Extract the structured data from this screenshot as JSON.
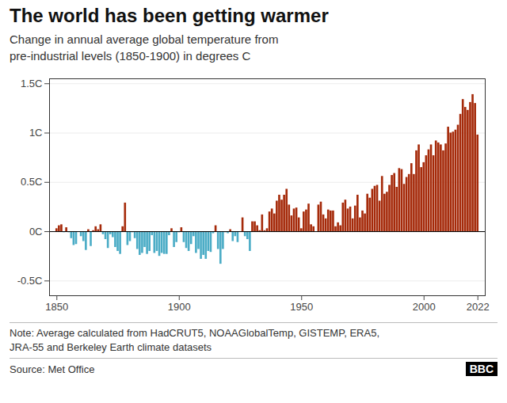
{
  "chart_data": {
    "type": "bar",
    "title": "The world has been getting warmer",
    "subtitle": "Change in annual average global temperature from\npre-industrial levels (1850-1900) in degrees C",
    "note": "Note: Average calculated from HadCRUT5, NOAAGlobalTemp, GISTEMP, ERA5,\nJRA-55 and Berkeley Earth climate datasets",
    "source": "Source: Met Office",
    "annotations": [
      "BBC"
    ],
    "x": [
      1850,
      1851,
      1852,
      1853,
      1854,
      1855,
      1856,
      1857,
      1858,
      1859,
      1860,
      1861,
      1862,
      1863,
      1864,
      1865,
      1866,
      1867,
      1868,
      1869,
      1870,
      1871,
      1872,
      1873,
      1874,
      1875,
      1876,
      1877,
      1878,
      1879,
      1880,
      1881,
      1882,
      1883,
      1884,
      1885,
      1886,
      1887,
      1888,
      1889,
      1890,
      1891,
      1892,
      1893,
      1894,
      1895,
      1896,
      1897,
      1898,
      1899,
      1900,
      1901,
      1902,
      1903,
      1904,
      1905,
      1906,
      1907,
      1908,
      1909,
      1910,
      1911,
      1912,
      1913,
      1914,
      1915,
      1916,
      1917,
      1918,
      1919,
      1920,
      1921,
      1922,
      1923,
      1924,
      1925,
      1926,
      1927,
      1928,
      1929,
      1930,
      1931,
      1932,
      1933,
      1934,
      1935,
      1936,
      1937,
      1938,
      1939,
      1940,
      1941,
      1942,
      1943,
      1944,
      1945,
      1946,
      1947,
      1948,
      1949,
      1950,
      1951,
      1952,
      1953,
      1954,
      1955,
      1956,
      1957,
      1958,
      1959,
      1960,
      1961,
      1962,
      1963,
      1964,
      1965,
      1966,
      1967,
      1968,
      1969,
      1970,
      1971,
      1972,
      1973,
      1974,
      1975,
      1976,
      1977,
      1978,
      1979,
      1980,
      1981,
      1982,
      1983,
      1984,
      1985,
      1986,
      1987,
      1988,
      1989,
      1990,
      1991,
      1992,
      1993,
      1994,
      1995,
      1996,
      1997,
      1998,
      1999,
      2000,
      2001,
      2002,
      2003,
      2004,
      2005,
      2006,
      2007,
      2008,
      2009,
      2010,
      2011,
      2012,
      2013,
      2014,
      2015,
      2016,
      2017,
      2018,
      2019,
      2020,
      2021,
      2022
    ],
    "values": [
      0.03,
      0.06,
      0.07,
      -0.01,
      0.04,
      -0.01,
      -0.07,
      -0.14,
      -0.13,
      0.0,
      -0.05,
      -0.1,
      -0.19,
      0.02,
      -0.15,
      0.01,
      0.05,
      0.02,
      0.07,
      -0.03,
      -0.08,
      -0.17,
      -0.03,
      -0.06,
      -0.16,
      -0.2,
      -0.23,
      0.05,
      0.29,
      -0.14,
      -0.1,
      -0.01,
      -0.07,
      -0.18,
      -0.24,
      -0.22,
      -0.16,
      -0.23,
      -0.2,
      -0.04,
      -0.22,
      -0.2,
      -0.25,
      -0.22,
      -0.23,
      -0.23,
      -0.04,
      0.03,
      -0.16,
      -0.11,
      -0.01,
      0.04,
      -0.11,
      -0.17,
      -0.2,
      -0.13,
      -0.05,
      -0.22,
      -0.18,
      -0.28,
      -0.24,
      -0.28,
      -0.2,
      -0.21,
      -0.02,
      0.06,
      -0.18,
      -0.33,
      -0.18,
      -0.01,
      -0.02,
      0.02,
      -0.1,
      -0.05,
      -0.11,
      0.0,
      0.14,
      -0.05,
      -0.08,
      -0.2,
      0.1,
      0.1,
      0.06,
      0.01,
      0.17,
      0.01,
      0.03,
      0.2,
      0.23,
      0.18,
      0.31,
      0.37,
      0.32,
      0.37,
      0.43,
      0.27,
      0.16,
      0.23,
      0.24,
      0.14,
      0.03,
      0.2,
      0.22,
      0.28,
      0.07,
      0.05,
      0.0,
      0.27,
      0.3,
      0.17,
      0.13,
      0.22,
      0.21,
      0.21,
      0.05,
      0.09,
      0.06,
      0.29,
      0.32,
      0.23,
      0.25,
      0.13,
      0.26,
      0.37,
      0.14,
      0.21,
      0.18,
      0.38,
      0.34,
      0.43,
      0.46,
      0.47,
      0.31,
      0.56,
      0.38,
      0.4,
      0.47,
      0.57,
      0.59,
      0.45,
      0.64,
      0.63,
      0.48,
      0.55,
      0.58,
      0.69,
      0.58,
      0.82,
      0.88,
      0.65,
      0.7,
      0.77,
      0.83,
      0.88,
      0.77,
      0.92,
      0.9,
      0.88,
      0.82,
      0.89,
      1.06,
      1.0,
      1.01,
      1.03,
      1.08,
      1.19,
      1.34,
      1.26,
      1.23,
      1.31,
      1.39,
      1.3,
      0.98
    ],
    "colors": [
      "#a52a0a",
      "#a52a0a",
      "#a52a0a",
      "#4bacc6",
      "#a52a0a",
      "#4bacc6",
      "#4bacc6",
      "#4bacc6",
      "#4bacc6",
      "#a52a0a",
      "#4bacc6",
      "#4bacc6",
      "#4bacc6",
      "#a52a0a",
      "#4bacc6",
      "#a52a0a",
      "#a52a0a",
      "#a52a0a",
      "#a52a0a",
      "#4bacc6",
      "#4bacc6",
      "#4bacc6",
      "#4bacc6",
      "#4bacc6",
      "#4bacc6",
      "#4bacc6",
      "#4bacc6",
      "#a52a0a",
      "#a52a0a",
      "#4bacc6",
      "#4bacc6",
      "#4bacc6",
      "#4bacc6",
      "#4bacc6",
      "#4bacc6",
      "#4bacc6",
      "#4bacc6",
      "#4bacc6",
      "#4bacc6",
      "#4bacc6",
      "#4bacc6",
      "#4bacc6",
      "#4bacc6",
      "#4bacc6",
      "#4bacc6",
      "#4bacc6",
      "#4bacc6",
      "#a52a0a",
      "#4bacc6",
      "#4bacc6",
      "#4bacc6",
      "#a52a0a",
      "#4bacc6",
      "#4bacc6",
      "#4bacc6",
      "#4bacc6",
      "#4bacc6",
      "#4bacc6",
      "#4bacc6",
      "#4bacc6",
      "#4bacc6",
      "#4bacc6",
      "#4bacc6",
      "#4bacc6",
      "#4bacc6",
      "#a52a0a",
      "#4bacc6",
      "#4bacc6",
      "#4bacc6",
      "#4bacc6",
      "#4bacc6",
      "#a52a0a",
      "#4bacc6",
      "#4bacc6",
      "#4bacc6",
      "#a52a0a",
      "#a52a0a",
      "#4bacc6",
      "#4bacc6",
      "#4bacc6",
      "#a52a0a",
      "#a52a0a",
      "#a52a0a",
      "#a52a0a",
      "#a52a0a",
      "#a52a0a",
      "#a52a0a",
      "#a52a0a",
      "#a52a0a",
      "#a52a0a",
      "#a52a0a",
      "#a52a0a",
      "#a52a0a",
      "#a52a0a",
      "#a52a0a",
      "#a52a0a",
      "#a52a0a",
      "#a52a0a",
      "#a52a0a",
      "#a52a0a",
      "#a52a0a",
      "#a52a0a",
      "#a52a0a",
      "#a52a0a",
      "#a52a0a",
      "#a52a0a",
      "#a52a0a",
      "#a52a0a",
      "#a52a0a",
      "#a52a0a",
      "#a52a0a",
      "#a52a0a",
      "#a52a0a",
      "#a52a0a",
      "#a52a0a",
      "#a52a0a",
      "#a52a0a",
      "#a52a0a",
      "#a52a0a",
      "#a52a0a",
      "#a52a0a",
      "#a52a0a",
      "#a52a0a",
      "#a52a0a",
      "#a52a0a",
      "#a52a0a",
      "#a52a0a",
      "#a52a0a",
      "#a52a0a",
      "#a52a0a",
      "#a52a0a",
      "#a52a0a",
      "#a52a0a",
      "#a52a0a",
      "#a52a0a",
      "#a52a0a",
      "#a52a0a",
      "#a52a0a",
      "#a52a0a",
      "#a52a0a",
      "#a52a0a",
      "#a52a0a",
      "#a52a0a",
      "#a52a0a",
      "#a52a0a",
      "#a52a0a",
      "#a52a0a",
      "#a52a0a",
      "#a52a0a",
      "#a52a0a",
      "#a52a0a",
      "#a52a0a",
      "#a52a0a",
      "#a52a0a",
      "#a52a0a",
      "#a52a0a",
      "#a52a0a",
      "#a52a0a",
      "#a52a0a",
      "#a52a0a",
      "#a52a0a",
      "#a52a0a",
      "#a52a0a",
      "#a52a0a",
      "#a52a0a",
      "#a52a0a",
      "#a52a0a",
      "#a52a0a",
      "#a52a0a",
      "#a52a0a",
      "#a52a0a",
      "#a52a0a",
      "#a52a0a"
    ],
    "xlim": [
      1847,
      2025
    ],
    "xticks": [
      1850,
      1900,
      1950,
      2000,
      2022
    ],
    "ylim": [
      -0.65,
      1.55
    ],
    "yticks": [
      {
        "value": -0.5,
        "label": "-0.5C"
      },
      {
        "value": 0.0,
        "label": "0C"
      },
      {
        "value": 0.5,
        "label": "0.5C"
      },
      {
        "value": 1.0,
        "label": "1C"
      },
      {
        "value": 1.5,
        "label": "1.5C"
      }
    ],
    "grid": true
  }
}
